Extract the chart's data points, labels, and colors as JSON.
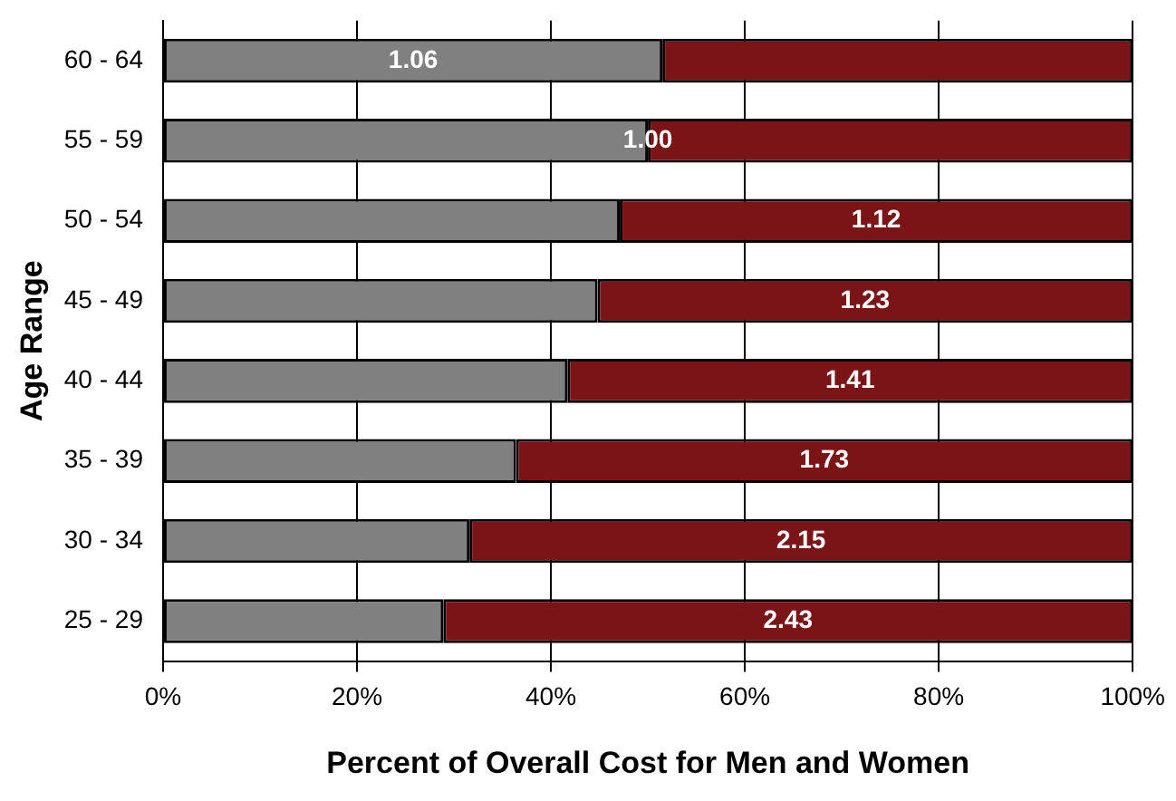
{
  "chart_data": {
    "type": "bar",
    "orientation": "horizontal",
    "stacked": true,
    "xlabel": "Percent of Overall Cost for Men and Women",
    "ylabel": "Age Range",
    "categories": [
      "60 - 64",
      "55 - 59",
      "50 - 54",
      "45 - 49",
      "40 - 44",
      "35 - 39",
      "30 - 34",
      "25 - 29"
    ],
    "series": [
      {
        "color": "#808080",
        "values": [
          51.5,
          50,
          47.1,
          44.8,
          41.7,
          36.4,
          31.6,
          28.9
        ]
      },
      {
        "color": "#7b1416",
        "values": [
          48.5,
          50,
          52.9,
          55.2,
          58.3,
          63.6,
          68.4,
          71.1
        ]
      }
    ],
    "annotations": [
      "1.06",
      "1.00",
      "1.12",
      "1.23",
      "1.41",
      "1.73",
      "2.15",
      "2.43"
    ],
    "xlim": [
      0,
      100
    ],
    "xticks": [
      {
        "value": 0,
        "label": "0%"
      },
      {
        "value": 20,
        "label": "20%"
      },
      {
        "value": 40,
        "label": "40%"
      },
      {
        "value": 60,
        "label": "60%"
      },
      {
        "value": 80,
        "label": "80%"
      },
      {
        "value": 100,
        "label": "100%"
      }
    ],
    "grid": "x",
    "legend": false
  }
}
